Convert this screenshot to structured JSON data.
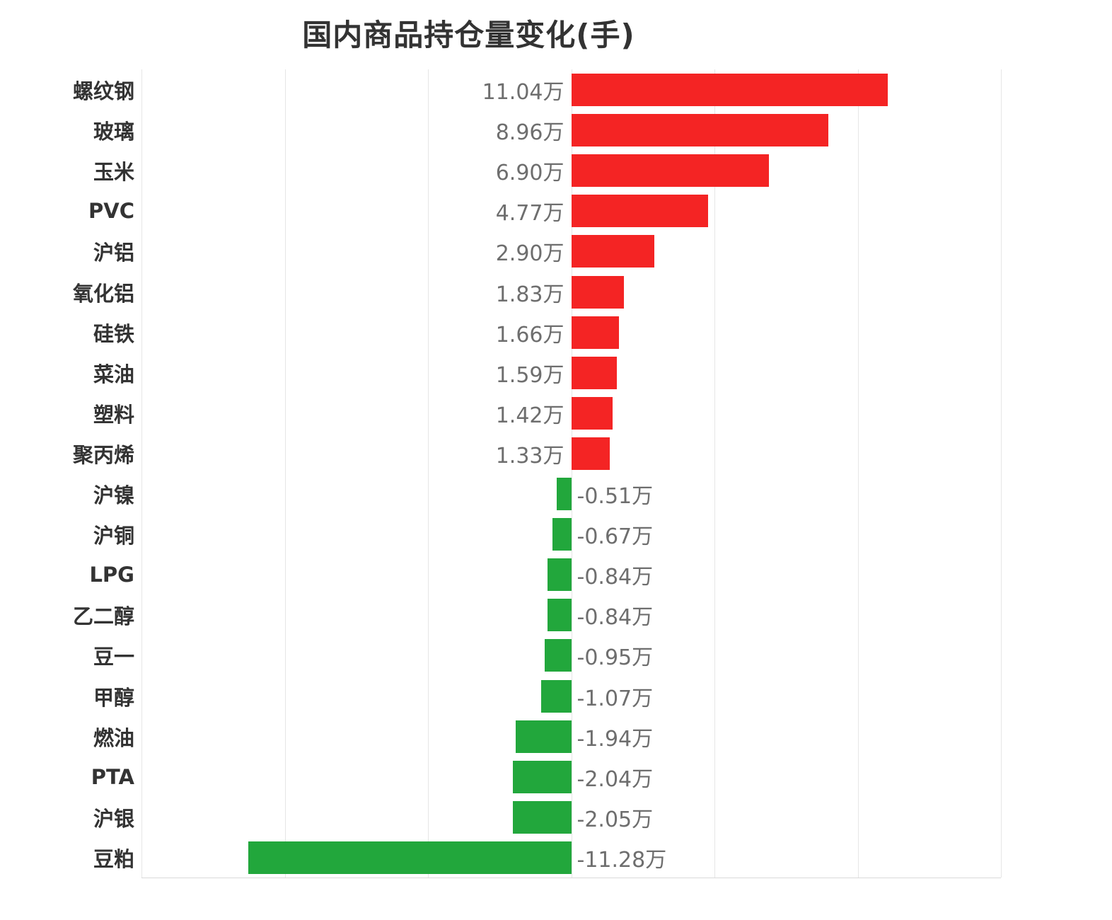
{
  "chart_data": {
    "type": "bar",
    "orientation": "horizontal",
    "title": "国内商品持仓量变化(手)",
    "unit": "万",
    "xlabel": "",
    "ylabel": "",
    "xlim": [
      -15,
      15
    ],
    "grid_step": 5,
    "grid_on": true,
    "legend": "none",
    "categories": [
      "螺纹钢",
      "玻璃",
      "玉米",
      "PVC",
      "沪铝",
      "氧化铝",
      "硅铁",
      "菜油",
      "塑料",
      "聚丙烯",
      "沪镍",
      "沪铜",
      "LPG",
      "乙二醇",
      "豆一",
      "甲醇",
      "燃油",
      "PTA",
      "沪银",
      "豆粕"
    ],
    "values": [
      11.04,
      8.96,
      6.9,
      4.77,
      2.9,
      1.83,
      1.66,
      1.59,
      1.42,
      1.33,
      -0.51,
      -0.67,
      -0.84,
      -0.84,
      -0.95,
      -1.07,
      -1.94,
      -2.04,
      -2.05,
      -11.28
    ],
    "value_labels": [
      "11.04万",
      "8.96万",
      "6.90万",
      "4.77万",
      "2.90万",
      "1.83万",
      "1.66万",
      "1.59万",
      "1.42万",
      "1.33万",
      "-0.51万",
      "-0.67万",
      "-0.84万",
      "-0.84万",
      "-0.95万",
      "-1.07万",
      "-1.94万",
      "-2.04万",
      "-2.05万",
      "-11.28万"
    ]
  },
  "colors": {
    "positive_bar": "#f42424",
    "negative_bar": "#22a73c",
    "gridline": "#e6e6e6",
    "axis_line": "#d9d9d9",
    "title_text": "#333333",
    "category_text": "#333333",
    "value_text": "#6e6e6e",
    "background": "#ffffff"
  }
}
